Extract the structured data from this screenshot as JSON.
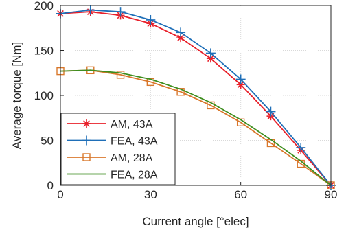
{
  "chart_data": {
    "type": "line",
    "xlabel": "Current angle [°elec]",
    "ylabel": "Average torque [Nm]",
    "xlim": [
      0,
      90
    ],
    "ylim": [
      0,
      200
    ],
    "xticks": [
      0,
      30,
      60,
      90
    ],
    "yticks": [
      0,
      50,
      100,
      150,
      200
    ],
    "grid": true,
    "legend_position": "bottom-left",
    "series": [
      {
        "name": "AM, 43A",
        "color": "#e8202a",
        "marker": "asterisk",
        "x": [
          0,
          10,
          20,
          30,
          40,
          50,
          60,
          70,
          80,
          90
        ],
        "y": [
          191,
          193,
          189,
          180,
          164,
          141,
          112,
          77,
          39,
          0
        ]
      },
      {
        "name": "FEA, 43A",
        "color": "#1f6fb8",
        "marker": "plus",
        "x": [
          0,
          10,
          20,
          30,
          40,
          50,
          60,
          70,
          80,
          90
        ],
        "y": [
          191,
          195,
          193,
          184,
          170,
          147,
          118,
          82,
          42,
          0
        ]
      },
      {
        "name": "AM, 28A",
        "color": "#d9772b",
        "marker": "square",
        "x": [
          0,
          10,
          20,
          30,
          40,
          50,
          60,
          70,
          80,
          90
        ],
        "y": [
          127,
          128,
          123,
          115,
          104,
          89,
          70,
          47,
          24,
          0
        ]
      },
      {
        "name": "FEA, 28A",
        "color": "#3e8e1f",
        "marker": "none",
        "x": [
          0,
          10,
          20,
          30,
          40,
          50,
          60,
          70,
          80,
          90
        ],
        "y": [
          127,
          128,
          125,
          118,
          107,
          92,
          73,
          51,
          27,
          0
        ]
      }
    ]
  }
}
